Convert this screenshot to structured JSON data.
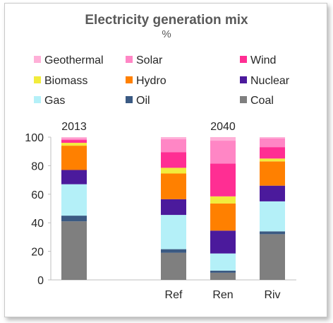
{
  "chart_data": {
    "type": "bar",
    "stacked": true,
    "title": "Electricity generation mix",
    "subtitle": "%",
    "categories": [
      "",
      "Ref",
      "Ren",
      "Riv"
    ],
    "groups": [
      {
        "label": "2013",
        "categories": [
          ""
        ]
      },
      {
        "label": "2040",
        "categories": [
          "Ref",
          "Ren",
          "Riv"
        ]
      }
    ],
    "ylim": [
      0,
      100
    ],
    "yticks": [
      "0",
      "20",
      "40",
      "60",
      "80",
      "100"
    ],
    "legend_position": "top",
    "series": [
      {
        "name": "Coal",
        "color": "#7f7f7f",
        "values": [
          41,
          19,
          5,
          32
        ]
      },
      {
        "name": "Oil",
        "color": "#3b5a83",
        "values": [
          4,
          2.5,
          1.5,
          2
        ]
      },
      {
        "name": "Gas",
        "color": "#b4f0f8",
        "values": [
          22,
          24,
          12,
          21
        ]
      },
      {
        "name": "Nuclear",
        "color": "#4b1a9c",
        "values": [
          10,
          11,
          16,
          11
        ]
      },
      {
        "name": "Hydro",
        "color": "#ff8000",
        "values": [
          17,
          18,
          19,
          17
        ]
      },
      {
        "name": "Biomass",
        "color": "#f2ec3c",
        "values": [
          2,
          4,
          5,
          2
        ]
      },
      {
        "name": "Wind",
        "color": "#ff2e93",
        "values": [
          2,
          11,
          23,
          8
        ]
      },
      {
        "name": "Solar",
        "color": "#ff86c5",
        "values": [
          1,
          9,
          16,
          6
        ]
      },
      {
        "name": "Geothermal",
        "color": "#ffb0d8",
        "values": [
          1,
          1.5,
          2.5,
          1
        ]
      }
    ],
    "legend_order": [
      "Geothermal",
      "Solar",
      "Wind",
      "Biomass",
      "Hydro",
      "Nuclear",
      "Gas",
      "Oil",
      "Coal"
    ]
  }
}
